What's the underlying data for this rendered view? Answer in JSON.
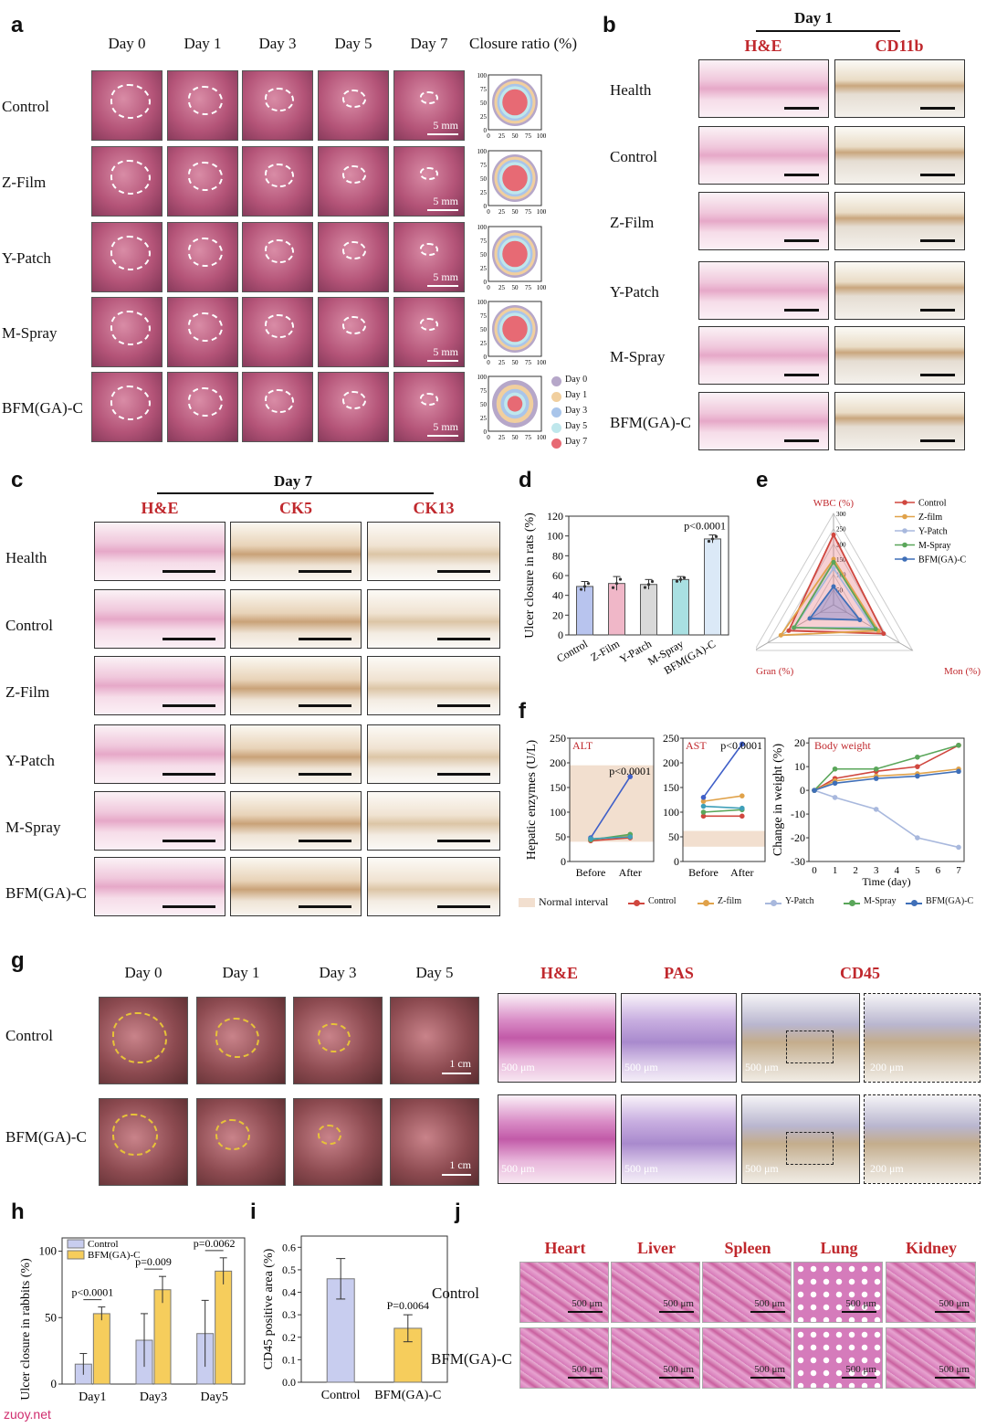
{
  "panels": {
    "a": "a",
    "b": "b",
    "c": "c",
    "d": "d",
    "e": "e",
    "f": "f",
    "g": "g",
    "h": "h",
    "i": "i",
    "j": "j"
  },
  "panel_a": {
    "columns": [
      "Day 0",
      "Day 1",
      "Day 3",
      "Day 5",
      "Day 7"
    ],
    "closure_header": "Closure ratio (%)",
    "rows": [
      "Control",
      "Z-Film",
      "Y-Patch",
      "M-Spray",
      "BFM(GA)-C"
    ],
    "scale": "5 mm",
    "ratio_axis_y": [
      "100",
      "75",
      "50",
      "25",
      "0"
    ],
    "ratio_axis_x": [
      "0",
      "25",
      "50",
      "75",
      "100"
    ],
    "legend": [
      "Day 0",
      "Day 1",
      "Day 3",
      "Day 5",
      "Day 7"
    ],
    "legend_colors": [
      "#b6a7c9",
      "#f1cf9e",
      "#a9c5ea",
      "#bfe7ec",
      "#e76a74"
    ]
  },
  "panel_b": {
    "title": "Day 1",
    "stains": [
      "H&E",
      "CD11b"
    ],
    "rows": [
      "Health",
      "Control",
      "Z-Film",
      "Y-Patch",
      "M-Spray",
      "BFM(GA)-C"
    ]
  },
  "panel_c": {
    "title": "Day 7",
    "stains": [
      "H&E",
      "CK5",
      "CK13"
    ],
    "rows": [
      "Health",
      "Control",
      "Z-Film",
      "Y-Patch",
      "M-Spray",
      "BFM(GA)-C"
    ]
  },
  "chart_data": [
    {
      "panel": "d",
      "type": "bar",
      "categories": [
        "Control",
        "Z-Film",
        "Y-Patch",
        "M-Spray",
        "BFM(GA)-C"
      ],
      "values": [
        49,
        52,
        51,
        56,
        97
      ],
      "errors": [
        5,
        7,
        5,
        3,
        4
      ],
      "colors": [
        "#b8c4ee",
        "#f0b7c8",
        "#d9d9d9",
        "#a9e0e2",
        "#dbe9f7"
      ],
      "ylabel": "Ulcer closure in rats (%)",
      "ylim": [
        0,
        120
      ],
      "yticks": [
        "0",
        "20",
        "40",
        "60",
        "80",
        "100",
        "120"
      ],
      "annotation": "p<0.0001"
    },
    {
      "panel": "e",
      "type": "radar",
      "axes": [
        "WBC (%)",
        "Mon (%)",
        "Gran (%)"
      ],
      "rticks": [
        "50",
        "100",
        "150",
        "200",
        "250",
        "300"
      ],
      "series": [
        {
          "name": "Control",
          "values": [
            230,
            190,
            170
          ],
          "color": "#d0473f"
        },
        {
          "name": "Z-film",
          "values": [
            150,
            170,
            200
          ],
          "color": "#e0a24a"
        },
        {
          "name": "Y-Patch",
          "values": [
            120,
            150,
            150
          ],
          "color": "#a8b8dd"
        },
        {
          "name": "M-Spray",
          "values": [
            140,
            160,
            150
          ],
          "color": "#5aa65a"
        },
        {
          "name": "BFM(GA)-C",
          "values": [
            60,
            100,
            90
          ],
          "color": "#3f6fb8"
        }
      ]
    },
    {
      "panel": "f-alt",
      "type": "line",
      "title": "ALT",
      "categories": [
        "Before",
        "After"
      ],
      "ylim": [
        0,
        250
      ],
      "yticks": [
        "0",
        "50",
        "100",
        "150",
        "200",
        "250"
      ],
      "normal_interval": [
        40,
        195
      ],
      "annotation": "p<0.0001",
      "ylabel": "Hepatic enzymes (U/L)",
      "series": [
        {
          "name": "Control",
          "values": [
            42,
            48
          ],
          "color": "#d0473f"
        },
        {
          "name": "Z-film",
          "values": [
            45,
            52
          ],
          "color": "#e0a24a"
        },
        {
          "name": "Y-Patch",
          "values": [
            48,
            172
          ],
          "color": "#3f5fc8"
        },
        {
          "name": "M-Spray",
          "values": [
            44,
            55
          ],
          "color": "#5aa65a"
        },
        {
          "name": "BFM(GA)-C",
          "values": [
            46,
            50
          ],
          "color": "#3f9fb8"
        }
      ]
    },
    {
      "panel": "f-ast",
      "type": "line",
      "title": "AST",
      "categories": [
        "Before",
        "After"
      ],
      "ylim": [
        0,
        250
      ],
      "yticks": [
        "0",
        "50",
        "100",
        "150",
        "200",
        "250"
      ],
      "normal_interval": [
        30,
        62
      ],
      "annotation": "p<0.0001",
      "series": [
        {
          "name": "Control",
          "values": [
            92,
            92
          ],
          "color": "#d0473f"
        },
        {
          "name": "Z-film",
          "values": [
            122,
            133
          ],
          "color": "#e0a24a"
        },
        {
          "name": "Y-Patch",
          "values": [
            130,
            238
          ],
          "color": "#3f5fc8"
        },
        {
          "name": "M-Spray",
          "values": [
            100,
            105
          ],
          "color": "#5aa65a"
        },
        {
          "name": "BFM(GA)-C",
          "values": [
            112,
            108
          ],
          "color": "#3f9fb8"
        }
      ]
    },
    {
      "panel": "f-weight",
      "type": "line",
      "title": "Body weight",
      "xlabel": "Time (day)",
      "ylabel": "Change in weight (%)",
      "x": [
        0,
        1,
        3,
        5,
        7
      ],
      "xticks": [
        "0",
        "1",
        "2",
        "3",
        "4",
        "5",
        "6",
        "7"
      ],
      "ylim": [
        -30,
        22
      ],
      "yticks": [
        "20",
        "10",
        "0",
        "-10",
        "-20",
        "-30"
      ],
      "series": [
        {
          "name": "Control",
          "values": [
            0,
            5,
            8,
            10,
            19
          ],
          "color": "#d0473f"
        },
        {
          "name": "Z-film",
          "values": [
            0,
            4,
            6,
            7,
            9
          ],
          "color": "#e0a24a"
        },
        {
          "name": "Y-Patch",
          "values": [
            0,
            -3,
            -8,
            -20,
            -24
          ],
          "color": "#a8b8dd"
        },
        {
          "name": "M-Spray",
          "values": [
            0,
            9,
            9,
            14,
            19
          ],
          "color": "#5aa65a"
        },
        {
          "name": "BFM(GA)-C",
          "values": [
            0,
            3,
            5,
            6,
            8
          ],
          "color": "#3f6fb8"
        }
      ]
    },
    {
      "panel": "h",
      "type": "bar",
      "categories": [
        "Day1",
        "Day3",
        "Day5"
      ],
      "ylabel": "Ulcer closure in rabbits (%)",
      "ylim": [
        0,
        110
      ],
      "yticks": [
        "0",
        "50",
        "100"
      ],
      "series": [
        {
          "name": "Control",
          "values": [
            15,
            33,
            38
          ],
          "errors": [
            8,
            20,
            25
          ],
          "color": "#c8cdef"
        },
        {
          "name": "BFM(GA)-C",
          "values": [
            53,
            71,
            85
          ],
          "errors": [
            5,
            10,
            10
          ],
          "color": "#f6cd5c"
        }
      ],
      "annotations": [
        "p<0.0001",
        "p=0.009",
        "p=0.0062"
      ]
    },
    {
      "panel": "i",
      "type": "bar",
      "categories": [
        "Control",
        "BFM(GA)-C"
      ],
      "values": [
        0.46,
        0.24
      ],
      "errors": [
        0.09,
        0.06
      ],
      "colors": [
        "#c8cdef",
        "#f6cd5c"
      ],
      "ylabel": "CD45 positive area (%)",
      "ylim": [
        0,
        0.65
      ],
      "yticks": [
        "0.0",
        "0.1",
        "0.2",
        "0.3",
        "0.4",
        "0.5",
        "0.6"
      ],
      "annotation": "P=0.0064"
    }
  ],
  "legend_f": {
    "normal": "Normal interval",
    "items": [
      {
        "name": "Control",
        "color": "#d0473f"
      },
      {
        "name": "Z-film",
        "color": "#e0a24a"
      },
      {
        "name": "Y-Patch",
        "color": "#a8b8dd"
      },
      {
        "name": "M-Spray",
        "color": "#5aa65a"
      },
      {
        "name": "BFM(GA)-C",
        "color": "#3f6fb8"
      }
    ]
  },
  "panel_g": {
    "days": [
      "Day 0",
      "Day 1",
      "Day 3",
      "Day 5"
    ],
    "stains": [
      "H&E",
      "PAS",
      "CD45"
    ],
    "rows": [
      "Control",
      "BFM(GA)-C"
    ],
    "scale_photo": "1 cm",
    "scale_500": "500 μm",
    "scale_200": "200 μm"
  },
  "panel_j": {
    "organs": [
      "Heart",
      "Liver",
      "Spleen",
      "Lung",
      "Kidney"
    ],
    "rows": [
      "Control",
      "BFM(GA)-C"
    ],
    "scale": "500 μm"
  },
  "watermark": "zuoy.net"
}
